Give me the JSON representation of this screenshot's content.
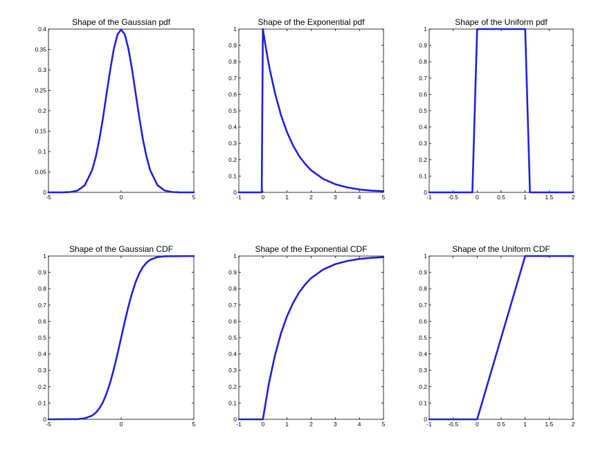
{
  "figure": {
    "background": "#ffffff",
    "line_color": "#1f1fdd"
  },
  "chart_data": [
    {
      "type": "line",
      "title": "Shape of the Gaussian pdf",
      "xlim": [
        -5,
        5
      ],
      "ylim": [
        0,
        0.4
      ],
      "xticks": [
        -5,
        0,
        5
      ],
      "xtick_labels": [
        "-5",
        "0",
        "5"
      ],
      "yticks": [
        0,
        0.05,
        0.1,
        0.15,
        0.2,
        0.25,
        0.3,
        0.35,
        0.4
      ],
      "ytick_labels": [
        "0",
        "0.05",
        "0.1",
        "0.15",
        "0.2",
        "0.25",
        "0.3",
        "0.35",
        "0.4"
      ],
      "series": [
        {
          "x": [
            -5,
            -4,
            -3.5,
            -3,
            -2.5,
            -2,
            -1.75,
            -1.5,
            -1.25,
            -1,
            -0.75,
            -0.5,
            -0.25,
            0,
            0.25,
            0.5,
            0.75,
            1,
            1.25,
            1.5,
            1.75,
            2,
            2.5,
            3,
            3.5,
            4,
            5
          ],
          "y": [
            0,
            0.0001,
            0.0009,
            0.0044,
            0.0175,
            0.054,
            0.0863,
            0.1295,
            0.1826,
            0.242,
            0.3011,
            0.3521,
            0.3867,
            0.3989,
            0.3867,
            0.3521,
            0.3011,
            0.242,
            0.1826,
            0.1295,
            0.0863,
            0.054,
            0.0175,
            0.0044,
            0.0009,
            0.0001,
            0
          ]
        }
      ]
    },
    {
      "type": "line",
      "title": "Shape of the Exponential pdf",
      "xlim": [
        -1,
        5
      ],
      "ylim": [
        0,
        1
      ],
      "xticks": [
        -1,
        0,
        1,
        2,
        3,
        4,
        5
      ],
      "xtick_labels": [
        "-1",
        "0",
        "1",
        "2",
        "3",
        "4",
        "5"
      ],
      "yticks": [
        0,
        0.1,
        0.2,
        0.3,
        0.4,
        0.5,
        0.6,
        0.7,
        0.8,
        0.9,
        1
      ],
      "ytick_labels": [
        "0",
        "0.1",
        "0.2",
        "0.3",
        "0.4",
        "0.5",
        "0.6",
        "0.7",
        "0.8",
        "0.9",
        "1"
      ],
      "series": [
        {
          "x": [
            -1,
            -0.05,
            0,
            0.1,
            0.2,
            0.3,
            0.5,
            0.75,
            1,
            1.25,
            1.5,
            1.75,
            2,
            2.5,
            3,
            3.5,
            4,
            4.5,
            5
          ],
          "y": [
            0,
            0,
            1,
            0.905,
            0.819,
            0.741,
            0.607,
            0.472,
            0.368,
            0.287,
            0.223,
            0.174,
            0.135,
            0.082,
            0.05,
            0.03,
            0.018,
            0.011,
            0.007
          ]
        }
      ]
    },
    {
      "type": "line",
      "title": "Shape of the Uniform pdf",
      "xlim": [
        -1,
        2
      ],
      "ylim": [
        0,
        1
      ],
      "xticks": [
        -1,
        -0.5,
        0,
        0.5,
        1,
        1.5,
        2
      ],
      "xtick_labels": [
        "-1",
        "-0.5",
        "0",
        "0.5",
        "1",
        "1.5",
        "2"
      ],
      "yticks": [
        0,
        0.1,
        0.2,
        0.3,
        0.4,
        0.5,
        0.6,
        0.7,
        0.8,
        0.9,
        1
      ],
      "ytick_labels": [
        "0",
        "0.1",
        "0.2",
        "0.3",
        "0.4",
        "0.5",
        "0.6",
        "0.7",
        "0.8",
        "0.9",
        "1"
      ],
      "series": [
        {
          "x": [
            -1,
            -0.1,
            0,
            1,
            1.1,
            2
          ],
          "y": [
            0,
            0,
            1,
            1,
            0,
            0
          ]
        }
      ]
    },
    {
      "type": "line",
      "title": "Shape of the Gaussian CDF",
      "xlim": [
        -5,
        5
      ],
      "ylim": [
        0,
        1
      ],
      "xticks": [
        -5,
        0,
        5
      ],
      "xtick_labels": [
        "-5",
        "0",
        "5"
      ],
      "yticks": [
        0,
        0.1,
        0.2,
        0.3,
        0.4,
        0.5,
        0.6,
        0.7,
        0.8,
        0.9,
        1
      ],
      "ytick_labels": [
        "0",
        "0.1",
        "0.2",
        "0.3",
        "0.4",
        "0.5",
        "0.6",
        "0.7",
        "0.8",
        "0.9",
        "1"
      ],
      "series": [
        {
          "x": [
            -5,
            -3,
            -2.5,
            -2,
            -1.75,
            -1.5,
            -1.25,
            -1,
            -0.75,
            -0.5,
            -0.25,
            0,
            0.25,
            0.5,
            0.75,
            1,
            1.25,
            1.5,
            1.75,
            2,
            2.5,
            3,
            5
          ],
          "y": [
            0,
            0.0013,
            0.0062,
            0.0228,
            0.0401,
            0.0668,
            0.1056,
            0.1587,
            0.2266,
            0.3085,
            0.4013,
            0.5,
            0.5987,
            0.6915,
            0.7734,
            0.8413,
            0.8944,
            0.9332,
            0.9599,
            0.9772,
            0.9938,
            0.9987,
            1
          ]
        }
      ]
    },
    {
      "type": "line",
      "title": "Shape of the Exponential CDF",
      "xlim": [
        -1,
        5
      ],
      "ylim": [
        0,
        1
      ],
      "xticks": [
        -1,
        0,
        1,
        2,
        3,
        4,
        5
      ],
      "xtick_labels": [
        "-1",
        "0",
        "1",
        "2",
        "3",
        "4",
        "5"
      ],
      "yticks": [
        0,
        0.1,
        0.2,
        0.3,
        0.4,
        0.5,
        0.6,
        0.7,
        0.8,
        0.9,
        1
      ],
      "ytick_labels": [
        "0",
        "0.1",
        "0.2",
        "0.3",
        "0.4",
        "0.5",
        "0.6",
        "0.7",
        "0.8",
        "0.9",
        "1"
      ],
      "series": [
        {
          "x": [
            -1,
            0,
            0.25,
            0.5,
            0.75,
            1,
            1.25,
            1.5,
            1.75,
            2,
            2.5,
            3,
            3.5,
            4,
            4.5,
            5
          ],
          "y": [
            0,
            0,
            0.221,
            0.393,
            0.528,
            0.632,
            0.713,
            0.777,
            0.826,
            0.865,
            0.918,
            0.95,
            0.97,
            0.982,
            0.989,
            0.993
          ]
        }
      ]
    },
    {
      "type": "line",
      "title": "Shape of the Uniform CDF",
      "xlim": [
        -1,
        2
      ],
      "ylim": [
        0,
        1
      ],
      "xticks": [
        -1,
        -0.5,
        0,
        0.5,
        1,
        1.5,
        2
      ],
      "xtick_labels": [
        "-1",
        "-0.5",
        "0",
        "0.5",
        "1",
        "1.5",
        "2"
      ],
      "yticks": [
        0,
        0.1,
        0.2,
        0.3,
        0.4,
        0.5,
        0.6,
        0.7,
        0.8,
        0.9,
        1
      ],
      "ytick_labels": [
        "0",
        "0.1",
        "0.2",
        "0.3",
        "0.4",
        "0.5",
        "0.6",
        "0.7",
        "0.8",
        "0.9",
        "1"
      ],
      "series": [
        {
          "x": [
            -1,
            0,
            1,
            2
          ],
          "y": [
            0,
            0,
            1,
            1
          ]
        }
      ]
    }
  ]
}
